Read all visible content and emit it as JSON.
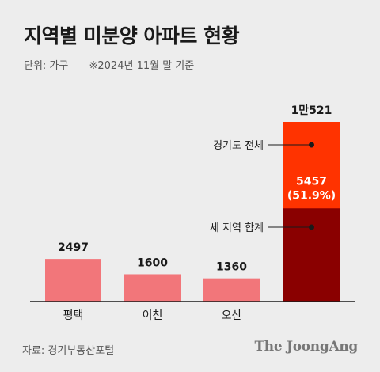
{
  "title": "지역별 미분양 아파트 현황",
  "unit": "단위: 가구",
  "note": "※2024년 11월 말 기준",
  "source": "자료: 경기부동산포털",
  "brand": "The JoongAng",
  "colors": {
    "bar": "#f2767a",
    "total": "#ff3300",
    "subset": "#8a0000",
    "background": "#ededed"
  },
  "chart_data": {
    "type": "bar",
    "categories": [
      "평택",
      "이천",
      "오산",
      ""
    ],
    "values": [
      2497,
      1600,
      1360,
      10521
    ],
    "value_labels": [
      "2497",
      "1600",
      "1360",
      "1만521"
    ],
    "subset": {
      "category_index": 3,
      "value": 5457,
      "label": "5457",
      "percent_label": "(51.9%)"
    },
    "annotations": [
      "경기도 전체",
      "세 지역 합계"
    ],
    "ylim": [
      0,
      10521
    ]
  }
}
